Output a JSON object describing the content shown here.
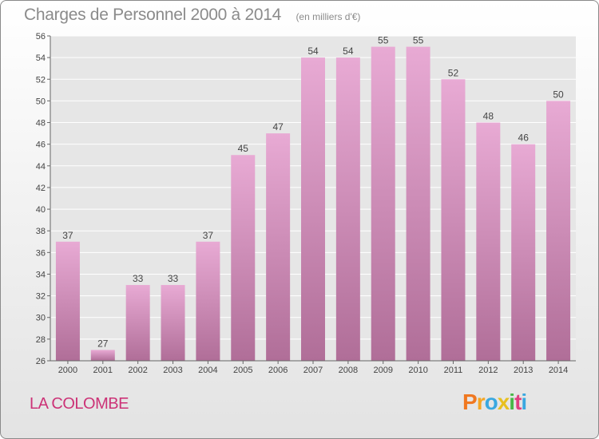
{
  "title": "Charges de Personnel 2000 à 2014",
  "subtitle": "(en milliers d'€)",
  "commune": "LA COLOMBE",
  "logo": {
    "letters": [
      "P",
      "r",
      "o",
      "x",
      "i",
      "t",
      "i"
    ],
    "colors": [
      "#f07820",
      "#f5a623",
      "#3aa8e0",
      "#e8c020",
      "#48b848",
      "#e04080",
      "#3aa8e0"
    ]
  },
  "colors": {
    "bar_top": "#e8aad4",
    "bar_bottom": "#b06e98",
    "title": "#8b8b8b",
    "commune": "#cc3377"
  },
  "chart_data": {
    "type": "bar",
    "title": "Charges de Personnel 2000 à 2014",
    "subtitle": "(en milliers d'€)",
    "categories": [
      "2000",
      "2001",
      "2002",
      "2003",
      "2004",
      "2005",
      "2006",
      "2007",
      "2008",
      "2009",
      "2010",
      "2011",
      "2012",
      "2013",
      "2014"
    ],
    "values": [
      37,
      27,
      33,
      33,
      37,
      45,
      47,
      54,
      54,
      55,
      55,
      52,
      48,
      46,
      50
    ],
    "ylim": [
      26,
      56
    ],
    "yticks": [
      26,
      28,
      30,
      32,
      34,
      36,
      38,
      40,
      42,
      44,
      46,
      48,
      50,
      52,
      54,
      56
    ],
    "grid": true
  }
}
